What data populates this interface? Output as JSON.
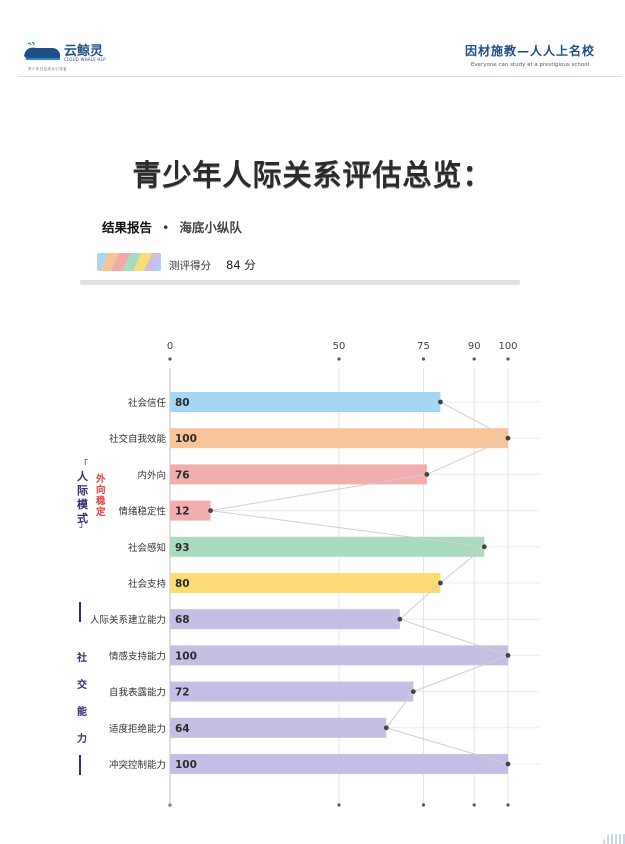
{
  "header": {
    "logo_name": "云鲸灵",
    "logo_en": "CLOUD WHALE HLP",
    "logo_slogan": "青少年社会成长引领者",
    "tagline_cn": "因材施教—人人上名校",
    "tagline_en": "Everyone can study at a prestigious school"
  },
  "title": "青少年人际关系评估总览：",
  "report": {
    "label": "结果报告",
    "bullet": "•",
    "team": "海底小纵队"
  },
  "score": {
    "label": "测评得分",
    "value": "84 分"
  },
  "side_labels": {
    "group1": "人际模式",
    "group1_sub": "外向稳定",
    "group2": "社交能力"
  },
  "colors": {
    "blue": "#a6d6f3",
    "orange": "#f6c498",
    "pink": "#f2adae",
    "green": "#a9dcbf",
    "yellow": "#fbdc74",
    "purple": "#c5bfe6",
    "navy": "#2e2f78",
    "red": "#e03a3a"
  },
  "chart_data": {
    "type": "bar",
    "orientation": "horizontal",
    "x_ticks": [
      0,
      50,
      75,
      90,
      100
    ],
    "xlim": [
      0,
      100
    ],
    "grid": true,
    "categories": [
      "社会信任",
      "社交自我效能",
      "内外向",
      "情绪稳定性",
      "社会感知",
      "社会支持",
      "人际关系建立能力",
      "情感支持能力",
      "自我表露能力",
      "适度拒绝能力",
      "冲突控制能力"
    ],
    "values": [
      80,
      100,
      76,
      12,
      93,
      80,
      68,
      100,
      72,
      64,
      100
    ],
    "bar_colors": [
      "#a6d6f3",
      "#f6c498",
      "#f2adae",
      "#f2adae",
      "#a9dcbf",
      "#fbdc74",
      "#c5bfe6",
      "#c5bfe6",
      "#c5bfe6",
      "#c5bfe6",
      "#c5bfe6"
    ],
    "connector_line": true
  }
}
